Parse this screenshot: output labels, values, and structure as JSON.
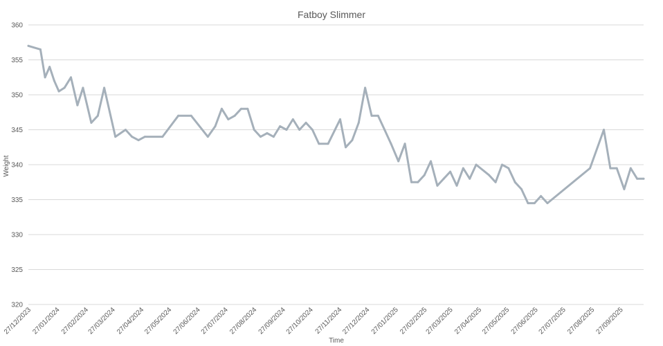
{
  "colors": {
    "series": "#a5b0ba",
    "grid": "#d9d9d9",
    "text": "#595959",
    "background": "#ffffff"
  },
  "chart_data": {
    "type": "line",
    "title": "Fatboy Slimmer",
    "xlabel": "Time",
    "ylabel": "Weight",
    "ylim": [
      320,
      360
    ],
    "y_ticks": [
      320,
      325,
      330,
      335,
      340,
      345,
      350,
      355,
      360
    ],
    "x_range": [
      "2023-12-27",
      "2025-10-22"
    ],
    "x_ticks": [
      "27/12/2023",
      "27/01/2024",
      "27/02/2024",
      "27/03/2024",
      "27/04/2024",
      "27/05/2024",
      "27/06/2024",
      "27/07/2024",
      "27/08/2024",
      "27/09/2024",
      "27/10/2024",
      "27/11/2024",
      "27/12/2024",
      "27/01/2025",
      "27/02/2025",
      "27/03/2025",
      "27/04/2025",
      "27/05/2025",
      "27/06/2025",
      "27/07/2025",
      "27/08/2025",
      "27/09/2025"
    ],
    "grid": true,
    "legend": "none",
    "series": [
      {
        "x": [
          "2023-12-27",
          "2024-01-09",
          "2024-01-14",
          "2024-01-19",
          "2024-01-24",
          "2024-01-29",
          "2024-02-04",
          "2024-02-11",
          "2024-02-18",
          "2024-02-24",
          "2024-03-04",
          "2024-03-11",
          "2024-03-18",
          "2024-03-30",
          "2024-04-10",
          "2024-04-17",
          "2024-04-24",
          "2024-05-01",
          "2024-05-20",
          "2024-06-06",
          "2024-06-20",
          "2024-07-08",
          "2024-07-16",
          "2024-07-23",
          "2024-07-30",
          "2024-08-06",
          "2024-08-13",
          "2024-08-20",
          "2024-08-27",
          "2024-09-03",
          "2024-09-10",
          "2024-09-17",
          "2024-09-24",
          "2024-10-01",
          "2024-10-08",
          "2024-10-15",
          "2024-10-22",
          "2024-10-29",
          "2024-11-05",
          "2024-11-15",
          "2024-11-28",
          "2024-12-04",
          "2024-12-11",
          "2024-12-18",
          "2024-12-25",
          "2025-01-01",
          "2025-01-08",
          "2025-01-15",
          "2025-01-22",
          "2025-01-30",
          "2025-02-06",
          "2025-02-13",
          "2025-02-20",
          "2025-02-27",
          "2025-03-06",
          "2025-03-13",
          "2025-03-20",
          "2025-03-27",
          "2025-04-03",
          "2025-04-10",
          "2025-04-17",
          "2025-04-24",
          "2025-05-08",
          "2025-05-15",
          "2025-05-22",
          "2025-05-29",
          "2025-06-05",
          "2025-06-12",
          "2025-06-19",
          "2025-06-26",
          "2025-07-03",
          "2025-07-10",
          "2025-08-25",
          "2025-09-09",
          "2025-09-16",
          "2025-09-23",
          "2025-10-01",
          "2025-10-08",
          "2025-10-15",
          "2025-10-22"
        ],
        "y": [
          357,
          356.5,
          352.5,
          354,
          352,
          350.5,
          351,
          352.5,
          348.5,
          351,
          346,
          347,
          351,
          344,
          345,
          344,
          343.5,
          344,
          344,
          347,
          347,
          344,
          345.5,
          348,
          346.5,
          347,
          348,
          348,
          345,
          344,
          344.5,
          344,
          345.5,
          345,
          346.5,
          345,
          346,
          345,
          343,
          343,
          346.5,
          342.5,
          343.5,
          346,
          351,
          347,
          347,
          345,
          343,
          340.5,
          343,
          337.5,
          337.5,
          338.5,
          340.5,
          337,
          338,
          339,
          337,
          339.5,
          338,
          340,
          338.5,
          337.5,
          340,
          339.5,
          337.5,
          336.5,
          334.5,
          334.5,
          335.5,
          334.5,
          339.5,
          345,
          339.5,
          339.5,
          336.5,
          339.5,
          338,
          338
        ]
      }
    ]
  }
}
